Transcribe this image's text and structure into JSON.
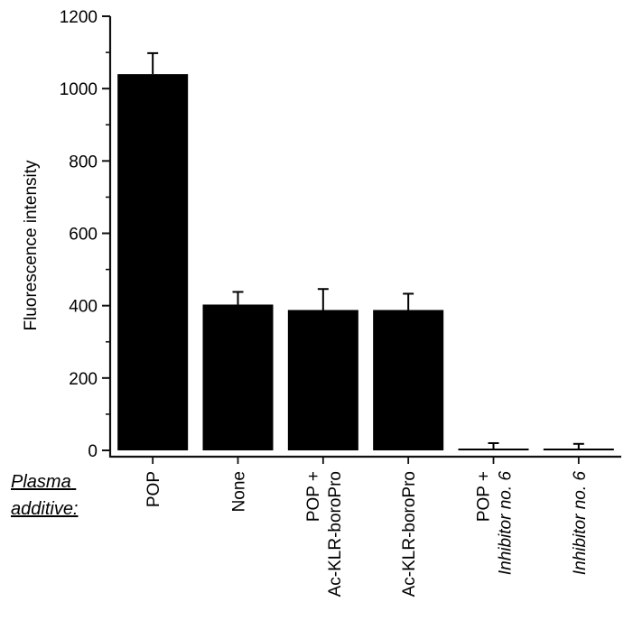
{
  "chart_data": {
    "type": "bar",
    "title": "",
    "xlabel": "",
    "ylabel": "Fluorescence intensity",
    "ylim": [
      0,
      1200
    ],
    "yticks": [
      0,
      200,
      400,
      600,
      800,
      1000,
      1200
    ],
    "grid": false,
    "legend": "none",
    "row_label": [
      "Plasma",
      "additive:"
    ],
    "categories": [
      {
        "lines": [
          "POP"
        ],
        "italic": false
      },
      {
        "lines": [
          "None"
        ],
        "italic": false
      },
      {
        "lines": [
          "POP +",
          "Ac-KLR-boroPro"
        ],
        "italic": false
      },
      {
        "lines": [
          "Ac-KLR-boroPro"
        ],
        "italic": false
      },
      {
        "lines": [
          "POP +",
          "Inhibitor no. 6"
        ],
        "italic_lines": [
          1
        ]
      },
      {
        "lines": [
          "Inhibitor no. 6"
        ],
        "italic_lines": [
          0
        ]
      }
    ],
    "series": [
      {
        "values": [
          1040,
          403,
          388,
          388,
          2,
          2
        ],
        "errors": [
          58,
          35,
          58,
          45,
          18,
          16
        ]
      }
    ],
    "colors": {
      "bar": "#000000",
      "axis": "#111111"
    }
  }
}
